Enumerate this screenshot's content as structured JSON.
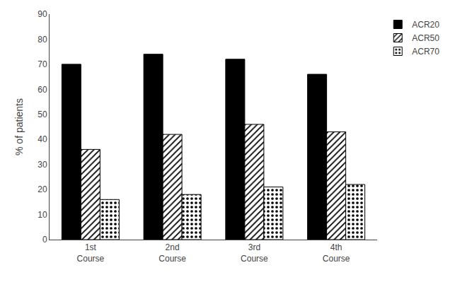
{
  "chart_data": {
    "type": "bar",
    "categories": [
      "1st\nCourse",
      "2nd\nCourse",
      "3rd\nCourse",
      "4th\nCourse"
    ],
    "series": [
      {
        "name": "ACR20",
        "color": "#000000",
        "values": [
          70,
          74,
          72,
          66
        ]
      },
      {
        "name": "ACR50",
        "color": "#ffffff",
        "values": [
          36,
          42,
          46,
          43
        ]
      },
      {
        "name": "ACR70",
        "color": "#ffffff",
        "values": [
          16,
          18,
          21,
          22
        ]
      }
    ],
    "ylabel": "% of patients",
    "ylim": [
      0,
      90
    ],
    "yticks": [
      0,
      10,
      20,
      30,
      40,
      50,
      60,
      70,
      80,
      90
    ],
    "grid": false,
    "legend": "upper right"
  }
}
